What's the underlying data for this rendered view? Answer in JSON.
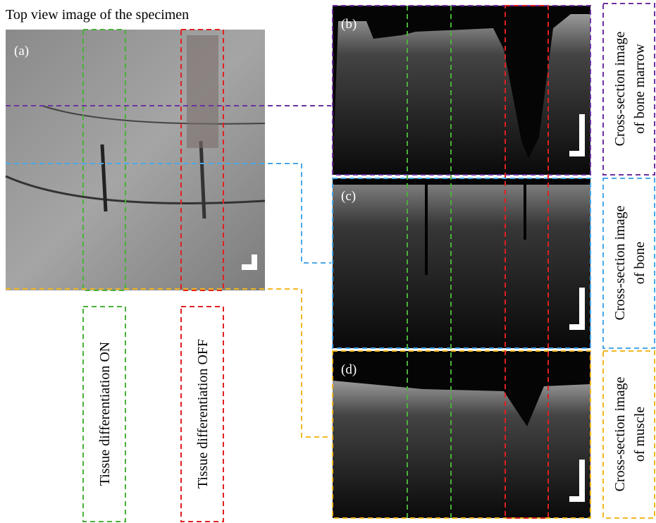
{
  "title": "Top view image of the specimen",
  "panels": [
    {
      "label": "(a)"
    },
    {
      "label": "(b)"
    },
    {
      "label": "(c)"
    },
    {
      "label": "(d)"
    }
  ],
  "differentiation_labels": [
    "Tissue differentiation ON",
    "Tissue differentiation OFF"
  ],
  "cross_sections": [
    {
      "line1": "Cross-section image",
      "line2": "of bone marrow"
    },
    {
      "line1": "Cross-section image",
      "line2": "of bone"
    },
    {
      "line1": "Cross-section image",
      "line2": "of muscle"
    }
  ]
}
